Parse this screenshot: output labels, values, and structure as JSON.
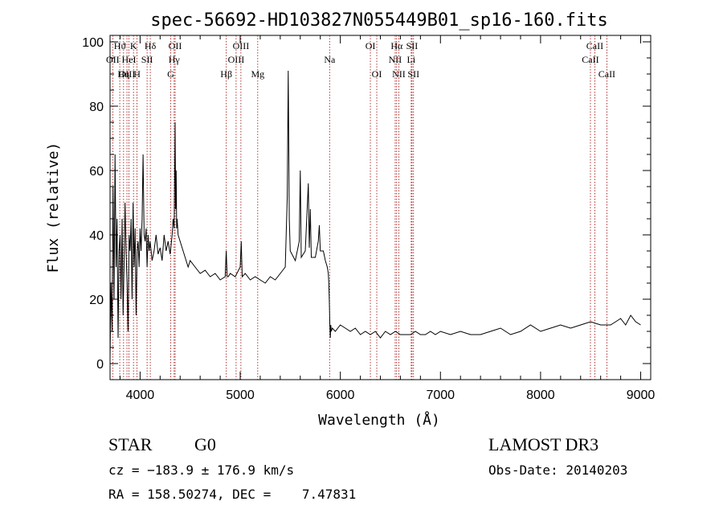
{
  "chart_data": {
    "type": "line",
    "title": "spec-56692-HD103827N055449B01_sp16-160.fits",
    "xlabel": "Wavelength (Å)",
    "ylabel": "Flux (relative)",
    "xlim": [
      3700,
      9100
    ],
    "ylim": [
      -5,
      102
    ],
    "xticks": [
      4000,
      5000,
      6000,
      7000,
      8000,
      9000
    ],
    "yticks": [
      0,
      20,
      40,
      60,
      80,
      100
    ],
    "grid": false,
    "line_color": "#000000",
    "marker_color": "#a00000",
    "series": [
      {
        "x": [
          3700,
          3710,
          3720,
          3730,
          3740,
          3750,
          3760,
          3770,
          3780,
          3790,
          3800,
          3810,
          3820,
          3830,
          3840,
          3850,
          3860,
          3870,
          3880,
          3890,
          3900,
          3910,
          3920,
          3930,
          3940,
          3950,
          3960,
          3970,
          3980,
          3990,
          4000,
          4010,
          4020,
          4030,
          4040,
          4050,
          4060,
          4070,
          4080,
          4090,
          4100,
          4120,
          4140,
          4160,
          4180,
          4200,
          4220,
          4240,
          4260,
          4280,
          4300,
          4320,
          4330,
          4340,
          4350,
          4355,
          4360,
          4365,
          4370,
          4380,
          4400,
          4420,
          4440,
          4460,
          4480,
          4500,
          4550,
          4600,
          4650,
          4700,
          4750,
          4800,
          4850,
          4860,
          4870,
          4880,
          4900,
          4950,
          5000,
          5010,
          5020,
          5050,
          5100,
          5150,
          5200,
          5250,
          5300,
          5350,
          5400,
          5450,
          5470,
          5480,
          5490,
          5500,
          5550,
          5590,
          5600,
          5610,
          5650,
          5680,
          5690,
          5700,
          5710,
          5750,
          5780,
          5790,
          5800,
          5830,
          5850,
          5870,
          5880,
          5885,
          5890,
          5895,
          5900,
          5905,
          5910,
          5920,
          5950,
          6000,
          6050,
          6100,
          6150,
          6200,
          6250,
          6300,
          6350,
          6400,
          6450,
          6500,
          6550,
          6600,
          6650,
          6700,
          6750,
          6800,
          6850,
          6900,
          6950,
          7000,
          7100,
          7200,
          7300,
          7400,
          7500,
          7600,
          7700,
          7800,
          7900,
          8000,
          8100,
          8200,
          8300,
          8400,
          8500,
          8600,
          8700,
          8750,
          8800,
          8850,
          8900,
          8950,
          9000
        ],
        "y": [
          2,
          25,
          10,
          55,
          20,
          65,
          30,
          45,
          8,
          35,
          40,
          20,
          45,
          15,
          30,
          50,
          35,
          25,
          10,
          40,
          35,
          45,
          20,
          50,
          30,
          42,
          15,
          35,
          38,
          30,
          42,
          35,
          45,
          65,
          40,
          38,
          42,
          30,
          40,
          35,
          38,
          32,
          35,
          40,
          34,
          36,
          32,
          40,
          35,
          38,
          34,
          40,
          45,
          42,
          75,
          48,
          60,
          42,
          45,
          40,
          38,
          36,
          34,
          32,
          30,
          32,
          30,
          28,
          29,
          27,
          28,
          26,
          27,
          35,
          27,
          27,
          28,
          27,
          30,
          38,
          27,
          28,
          26,
          27,
          26,
          25,
          27,
          26,
          28,
          30,
          52,
          91,
          45,
          35,
          32,
          38,
          60,
          33,
          35,
          56,
          36,
          48,
          33,
          33,
          38,
          43,
          35,
          35,
          32,
          30,
          28,
          25,
          20,
          12,
          8,
          12,
          10,
          11,
          10,
          12,
          11,
          10,
          11,
          9,
          10,
          9,
          10,
          8,
          10,
          9,
          10,
          9,
          9,
          9,
          10,
          9,
          9,
          10,
          9,
          10,
          9,
          10,
          9,
          9,
          10,
          11,
          9,
          10,
          12,
          10,
          11,
          12,
          11,
          12,
          13,
          12,
          12,
          13,
          14,
          12,
          15,
          13,
          12
        ]
      }
    ],
    "line_markers": [
      {
        "label": "Hϑ",
        "x": 3797,
        "row": 1
      },
      {
        "label": "OII",
        "x": 3727,
        "row": 2
      },
      {
        "label": "OIII",
        "x": 3869,
        "row": 3
      },
      {
        "label": "K",
        "x": 3934,
        "row": 1
      },
      {
        "label": "HeI",
        "x": 3889,
        "row": 2
      },
      {
        "label": "Hη",
        "x": 3835,
        "row": 3
      },
      {
        "label": "Hδ",
        "x": 4102,
        "row": 1
      },
      {
        "label": "SII",
        "x": 4070,
        "row": 2
      },
      {
        "label": "H",
        "x": 3969,
        "row": 3
      },
      {
        "label": "OII",
        "x": 4350,
        "row": 1
      },
      {
        "label": "Hγ",
        "x": 4340,
        "row": 2
      },
      {
        "label": "G",
        "x": 4305,
        "row": 3
      },
      {
        "label": "OIII",
        "x": 5007,
        "row": 1
      },
      {
        "label": "OIII",
        "x": 4959,
        "row": 2
      },
      {
        "label": "Hβ",
        "x": 4861,
        "row": 3
      },
      {
        "label": "Mg",
        "x": 5175,
        "row": 3
      },
      {
        "label": "Na",
        "x": 5893,
        "row": 2
      },
      {
        "label": "OI",
        "x": 6300,
        "row": 1
      },
      {
        "label": "OI",
        "x": 6364,
        "row": 3
      },
      {
        "label": "Hα",
        "x": 6563,
        "row": 1
      },
      {
        "label": "SII",
        "x": 6716,
        "row": 1
      },
      {
        "label": "NII",
        "x": 6548,
        "row": 2
      },
      {
        "label": "Li",
        "x": 6708,
        "row": 2
      },
      {
        "label": "NII",
        "x": 6584,
        "row": 3
      },
      {
        "label": "SII",
        "x": 6731,
        "row": 3
      },
      {
        "label": "CaII",
        "x": 8542,
        "row": 1
      },
      {
        "label": "CaII",
        "x": 8498,
        "row": 2
      },
      {
        "label": "CaII",
        "x": 8662,
        "row": 3
      }
    ]
  },
  "info": {
    "class": "STAR",
    "subclass": "G0",
    "survey": "LAMOST DR3",
    "cz": "cz = −183.9 ± 176.9 km/s",
    "obs_date": "Obs-Date: 20140203",
    "coords": "RA = 158.50274, DEC =    7.47831"
  }
}
